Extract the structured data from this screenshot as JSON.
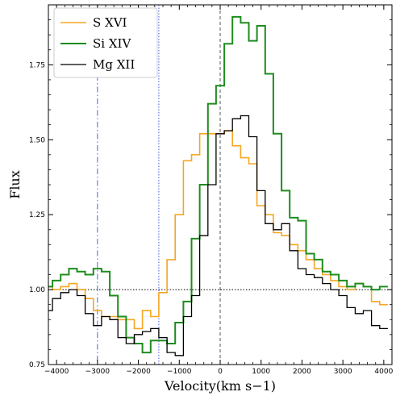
{
  "chart_data": {
    "type": "line",
    "xlabel": "Velocity(km s−1)",
    "ylabel": "Flux",
    "xlim": [
      -4200,
      4200
    ],
    "ylim": [
      0.75,
      1.95
    ],
    "x_ticks": [
      -4000,
      -3000,
      -2000,
      -1000,
      0,
      1000,
      2000,
      3000,
      4000
    ],
    "y_ticks": [
      0.75,
      1.0,
      1.25,
      1.5,
      1.75
    ],
    "x_tick_labels": [
      "−4000",
      "−3000",
      "−2000",
      "−1000",
      "0",
      "1000",
      "2000",
      "3000",
      "4000"
    ],
    "y_tick_labels": [
      "0.75",
      "1.00",
      "1.25",
      "1.50",
      "1.75"
    ],
    "legend_position": "top-left",
    "reference_lines": [
      {
        "orientation": "horizontal",
        "value": 1.0,
        "style": "dotted",
        "color": "#000000"
      },
      {
        "orientation": "vertical",
        "value": 0,
        "style": "dashed",
        "color": "#555555"
      },
      {
        "orientation": "vertical",
        "value": -3000,
        "style": "dashdot",
        "color": "#4466dd"
      },
      {
        "orientation": "vertical",
        "value": -1500,
        "style": "dotted",
        "color": "#4455ee"
      }
    ],
    "step_width": 200,
    "series": [
      {
        "name": "S XVI",
        "color": "#f5a623",
        "line_width": 1.6,
        "x": [
          -4200,
          -4000,
          -3800,
          -3600,
          -3400,
          -3200,
          -3000,
          -2800,
          -2600,
          -2400,
          -2200,
          -2000,
          -1800,
          -1600,
          -1400,
          -1200,
          -1000,
          -800,
          -600,
          -400,
          -200,
          0,
          200,
          400,
          600,
          800,
          1000,
          1200,
          1400,
          1600,
          1800,
          2000,
          2200,
          2400,
          2600,
          2800,
          3000,
          3200,
          3400,
          3600,
          3800,
          4000
        ],
        "y": [
          1.01,
          1.0,
          1.01,
          1.02,
          1.0,
          0.97,
          0.93,
          0.91,
          0.91,
          0.9,
          0.9,
          0.87,
          0.93,
          0.91,
          0.99,
          1.1,
          1.25,
          1.43,
          1.45,
          1.52,
          1.52,
          1.52,
          1.53,
          1.48,
          1.44,
          1.42,
          1.28,
          1.25,
          1.19,
          1.18,
          1.15,
          1.13,
          1.1,
          1.07,
          1.05,
          1.03,
          1.01,
          1.0,
          1.02,
          1.01,
          0.96,
          0.95
        ]
      },
      {
        "name": "Si XIV",
        "color": "#1e8c1e",
        "line_width": 2.0,
        "x": [
          -4200,
          -4000,
          -3800,
          -3600,
          -3400,
          -3200,
          -3000,
          -2800,
          -2600,
          -2400,
          -2200,
          -2000,
          -1800,
          -1600,
          -1400,
          -1200,
          -1000,
          -800,
          -600,
          -400,
          -200,
          0,
          200,
          400,
          600,
          800,
          1000,
          1200,
          1400,
          1600,
          1800,
          2000,
          2200,
          2400,
          2600,
          2800,
          3000,
          3200,
          3400,
          3600,
          3800,
          4000
        ],
        "y": [
          1.01,
          1.03,
          1.05,
          1.07,
          1.06,
          1.05,
          1.07,
          1.06,
          0.98,
          0.91,
          0.84,
          0.82,
          0.79,
          0.83,
          0.83,
          0.82,
          0.89,
          0.96,
          1.17,
          1.35,
          1.62,
          1.68,
          1.82,
          1.91,
          1.89,
          1.83,
          1.88,
          1.72,
          1.52,
          1.33,
          1.24,
          1.23,
          1.12,
          1.1,
          1.06,
          1.05,
          1.03,
          1.01,
          1.02,
          1.01,
          1.0,
          1.01
        ]
      },
      {
        "name": "Mg XII",
        "color": "#000000",
        "line_width": 1.3,
        "x": [
          -4200,
          -4000,
          -3800,
          -3600,
          -3400,
          -3200,
          -3000,
          -2800,
          -2600,
          -2400,
          -2200,
          -2000,
          -1800,
          -1600,
          -1400,
          -1200,
          -1000,
          -800,
          -600,
          -400,
          -200,
          0,
          200,
          400,
          600,
          800,
          1000,
          1200,
          1400,
          1600,
          1800,
          2000,
          2200,
          2400,
          2600,
          2800,
          3000,
          3200,
          3400,
          3600,
          3800,
          4000
        ],
        "y": [
          0.93,
          0.97,
          0.99,
          1.0,
          0.98,
          0.92,
          0.88,
          0.91,
          0.9,
          0.84,
          0.82,
          0.85,
          0.86,
          0.87,
          0.84,
          0.79,
          0.78,
          0.91,
          0.98,
          1.18,
          1.35,
          1.52,
          1.53,
          1.57,
          1.58,
          1.51,
          1.33,
          1.22,
          1.2,
          1.22,
          1.13,
          1.07,
          1.05,
          1.04,
          1.02,
          1.0,
          0.98,
          0.94,
          0.92,
          0.93,
          0.88,
          0.87
        ]
      }
    ]
  }
}
